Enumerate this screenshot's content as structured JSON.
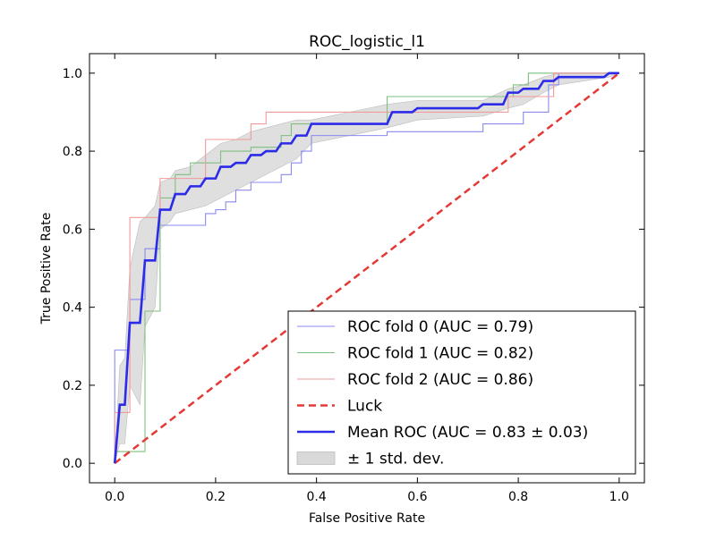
{
  "chart_data": {
    "type": "line",
    "title": "ROC_logistic_l1",
    "xlabel": "False Positive Rate",
    "ylabel": "True Positive Rate",
    "xlim": [
      -0.05,
      1.05
    ],
    "ylim": [
      -0.05,
      1.05
    ],
    "xticks": [
      0.0,
      0.2,
      0.4,
      0.6,
      0.8,
      1.0
    ],
    "yticks": [
      0.0,
      0.2,
      0.4,
      0.6,
      0.8,
      1.0
    ],
    "xtick_labels": [
      "0.0",
      "0.2",
      "0.4",
      "0.6",
      "0.8",
      "1.0"
    ],
    "ytick_labels": [
      "0.0",
      "0.2",
      "0.4",
      "0.6",
      "0.8",
      "1.0"
    ],
    "grid": false,
    "legend_position": "lower-right",
    "colors": {
      "fold0": "#8a8af0",
      "fold1": "#7fbf7f",
      "fold2": "#f09a9a",
      "luck": "#e53935",
      "mean": "#2b2be8",
      "band": "#d9d9d9"
    },
    "series": [
      {
        "name": "ROC fold 0 (AUC = 0.79)",
        "style": "thin-step",
        "points": [
          [
            0,
            0
          ],
          [
            0,
            0.29
          ],
          [
            0.03,
            0.29
          ],
          [
            0.03,
            0.42
          ],
          [
            0.06,
            0.42
          ],
          [
            0.06,
            0.55
          ],
          [
            0.09,
            0.55
          ],
          [
            0.09,
            0.61
          ],
          [
            0.18,
            0.61
          ],
          [
            0.18,
            0.64
          ],
          [
            0.2,
            0.64
          ],
          [
            0.2,
            0.65
          ],
          [
            0.22,
            0.65
          ],
          [
            0.22,
            0.67
          ],
          [
            0.24,
            0.67
          ],
          [
            0.24,
            0.7
          ],
          [
            0.27,
            0.7
          ],
          [
            0.27,
            0.72
          ],
          [
            0.33,
            0.72
          ],
          [
            0.33,
            0.74
          ],
          [
            0.35,
            0.74
          ],
          [
            0.35,
            0.77
          ],
          [
            0.37,
            0.77
          ],
          [
            0.37,
            0.8
          ],
          [
            0.39,
            0.8
          ],
          [
            0.39,
            0.84
          ],
          [
            0.54,
            0.84
          ],
          [
            0.54,
            0.85
          ],
          [
            0.73,
            0.85
          ],
          [
            0.73,
            0.87
          ],
          [
            0.81,
            0.87
          ],
          [
            0.81,
            0.9
          ],
          [
            0.86,
            0.9
          ],
          [
            0.86,
            0.97
          ],
          [
            0.88,
            0.97
          ],
          [
            0.88,
            1.0
          ],
          [
            1.0,
            1.0
          ]
        ]
      },
      {
        "name": "ROC fold 1 (AUC = 0.82)",
        "style": "thin-step",
        "points": [
          [
            0,
            0
          ],
          [
            0,
            0.03
          ],
          [
            0.06,
            0.03
          ],
          [
            0.06,
            0.39
          ],
          [
            0.09,
            0.39
          ],
          [
            0.09,
            0.68
          ],
          [
            0.12,
            0.68
          ],
          [
            0.12,
            0.74
          ],
          [
            0.15,
            0.74
          ],
          [
            0.15,
            0.77
          ],
          [
            0.21,
            0.77
          ],
          [
            0.21,
            0.8
          ],
          [
            0.27,
            0.8
          ],
          [
            0.27,
            0.81
          ],
          [
            0.33,
            0.81
          ],
          [
            0.33,
            0.84
          ],
          [
            0.35,
            0.84
          ],
          [
            0.35,
            0.87
          ],
          [
            0.54,
            0.87
          ],
          [
            0.54,
            0.94
          ],
          [
            0.79,
            0.94
          ],
          [
            0.79,
            0.97
          ],
          [
            0.82,
            0.97
          ],
          [
            0.82,
            1.0
          ],
          [
            1.0,
            1.0
          ]
        ]
      },
      {
        "name": "ROC fold 2 (AUC = 0.86)",
        "style": "thin-step",
        "points": [
          [
            0,
            0
          ],
          [
            0,
            0.13
          ],
          [
            0.03,
            0.13
          ],
          [
            0.03,
            0.63
          ],
          [
            0.09,
            0.63
          ],
          [
            0.09,
            0.73
          ],
          [
            0.18,
            0.73
          ],
          [
            0.18,
            0.83
          ],
          [
            0.27,
            0.83
          ],
          [
            0.27,
            0.87
          ],
          [
            0.3,
            0.87
          ],
          [
            0.3,
            0.9
          ],
          [
            0.78,
            0.9
          ],
          [
            0.78,
            0.94
          ],
          [
            0.87,
            0.94
          ],
          [
            0.87,
            1.0
          ],
          [
            1.0,
            1.0
          ]
        ]
      },
      {
        "name": "Luck",
        "style": "dashed",
        "points": [
          [
            0,
            0
          ],
          [
            1,
            1
          ]
        ]
      },
      {
        "name": "Mean ROC (AUC = 0.83 ± 0.03)",
        "style": "thick",
        "points": [
          [
            0,
            0
          ],
          [
            0.01,
            0.15
          ],
          [
            0.02,
            0.15
          ],
          [
            0.03,
            0.36
          ],
          [
            0.05,
            0.36
          ],
          [
            0.06,
            0.52
          ],
          [
            0.08,
            0.52
          ],
          [
            0.09,
            0.65
          ],
          [
            0.11,
            0.65
          ],
          [
            0.12,
            0.69
          ],
          [
            0.14,
            0.69
          ],
          [
            0.15,
            0.71
          ],
          [
            0.17,
            0.71
          ],
          [
            0.18,
            0.73
          ],
          [
            0.2,
            0.73
          ],
          [
            0.21,
            0.76
          ],
          [
            0.23,
            0.76
          ],
          [
            0.24,
            0.77
          ],
          [
            0.26,
            0.77
          ],
          [
            0.27,
            0.79
          ],
          [
            0.29,
            0.79
          ],
          [
            0.3,
            0.8
          ],
          [
            0.32,
            0.8
          ],
          [
            0.33,
            0.82
          ],
          [
            0.35,
            0.82
          ],
          [
            0.36,
            0.84
          ],
          [
            0.38,
            0.84
          ],
          [
            0.39,
            0.87
          ],
          [
            0.54,
            0.87
          ],
          [
            0.55,
            0.9
          ],
          [
            0.59,
            0.9
          ],
          [
            0.6,
            0.91
          ],
          [
            0.72,
            0.91
          ],
          [
            0.73,
            0.92
          ],
          [
            0.77,
            0.92
          ],
          [
            0.78,
            0.95
          ],
          [
            0.8,
            0.95
          ],
          [
            0.81,
            0.96
          ],
          [
            0.84,
            0.96
          ],
          [
            0.85,
            0.98
          ],
          [
            0.87,
            0.98
          ],
          [
            0.88,
            0.99
          ],
          [
            0.97,
            0.99
          ],
          [
            0.98,
            1.0
          ],
          [
            1.0,
            1.0
          ]
        ]
      }
    ],
    "std_band": {
      "name": "± 1 std. dev.",
      "x": [
        0,
        0.01,
        0.02,
        0.03,
        0.05,
        0.06,
        0.08,
        0.09,
        0.11,
        0.12,
        0.15,
        0.18,
        0.21,
        0.24,
        0.27,
        0.3,
        0.33,
        0.36,
        0.39,
        0.54,
        0.6,
        0.73,
        0.78,
        0.81,
        0.85,
        0.88,
        0.98,
        1.0
      ],
      "upper": [
        0,
        0.25,
        0.27,
        0.5,
        0.62,
        0.63,
        0.66,
        0.72,
        0.73,
        0.75,
        0.76,
        0.79,
        0.82,
        0.83,
        0.85,
        0.86,
        0.87,
        0.88,
        0.88,
        0.92,
        0.93,
        0.93,
        0.96,
        0.97,
        0.99,
        1.0,
        1.0,
        1.0
      ],
      "lower": [
        0,
        0.05,
        0.05,
        0.2,
        0.15,
        0.35,
        0.4,
        0.6,
        0.62,
        0.64,
        0.65,
        0.66,
        0.68,
        0.7,
        0.72,
        0.74,
        0.76,
        0.78,
        0.82,
        0.86,
        0.88,
        0.89,
        0.91,
        0.92,
        0.95,
        0.97,
        0.99,
        1.0
      ]
    }
  }
}
